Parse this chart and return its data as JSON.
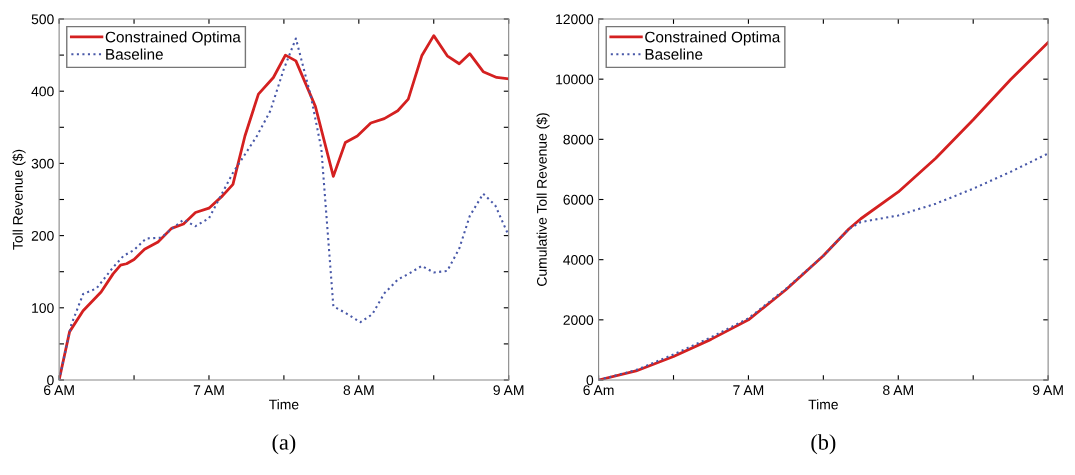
{
  "chart_data": [
    {
      "type": "line",
      "xlabel": "Time",
      "ylabel": "Toll Revenue ($)",
      "annotations": [
        "(a)"
      ],
      "legend": "top left",
      "grid": false,
      "xlim": [
        6,
        9
      ],
      "xticks": [
        {
          "value": 6,
          "label": "6 AM"
        },
        {
          "value": 6.5,
          "label": null
        },
        {
          "value": 7,
          "label": "7 AM"
        },
        {
          "value": 7.5,
          "label": null
        },
        {
          "value": 8,
          "label": "8 AM"
        },
        {
          "value": 8.5,
          "label": null
        },
        {
          "value": 9,
          "label": "9 AM"
        }
      ],
      "ylim": [
        0,
        500
      ],
      "yticks": [
        0,
        {
          "value": 50,
          "label": null
        },
        100,
        {
          "value": 150,
          "label": null
        },
        200,
        {
          "value": 250,
          "label": null
        },
        300,
        {
          "value": 350,
          "label": null
        },
        400,
        {
          "value": 450,
          "label": null
        },
        500
      ],
      "series": [
        {
          "name": "Constrained Optima",
          "color": "#d42020",
          "line_style": "solid",
          "x": [
            6,
            6.07,
            6.16,
            6.28,
            6.36,
            6.41,
            6.45,
            6.5,
            6.57,
            6.66,
            6.75,
            6.83,
            6.91,
            7.0,
            7.09,
            7.16,
            7.24,
            7.33,
            7.43,
            7.51,
            7.58,
            7.71,
            7.83,
            7.91,
            7.99,
            8.08,
            8.17,
            8.26,
            8.33,
            8.42,
            8.5,
            8.59,
            8.67,
            8.74,
            8.83,
            8.92,
            9
          ],
          "values": [
            0,
            67,
            96,
            122,
            147,
            159,
            161,
            167,
            181,
            191,
            210,
            216,
            232,
            238,
            255,
            271,
            338,
            396,
            419,
            450,
            442,
            379,
            282,
            329,
            338,
            356,
            362,
            373,
            389,
            449,
            477,
            449,
            438,
            452,
            427,
            419,
            417
          ]
        },
        {
          "name": "Baseline",
          "color": "#4858a8",
          "line_style": "dotted",
          "x": [
            6,
            6.08,
            6.16,
            6.25,
            6.36,
            6.43,
            6.5,
            6.58,
            6.68,
            6.75,
            6.83,
            6.91,
            7.0,
            7.16,
            7.32,
            7.41,
            7.5,
            7.58,
            7.68,
            7.75,
            7.83,
            7.91,
            8.01,
            8.09,
            8.17,
            8.26,
            8.34,
            8.42,
            8.5,
            8.59,
            8.67,
            8.74,
            8.83,
            8.91,
            9
          ],
          "values": [
            0,
            76,
            119,
            127,
            156,
            172,
            180,
            196,
            197,
            209,
            222,
            213,
            224,
            287,
            338,
            373,
            431,
            473,
            393,
            320,
            102,
            93,
            80,
            91,
            120,
            139,
            148,
            158,
            149,
            151,
            182,
            227,
            258,
            242,
            200
          ]
        }
      ]
    },
    {
      "type": "line",
      "xlabel": "Time",
      "ylabel": "Cumulative Toll Revenue ($)",
      "annotations": [
        "(b)"
      ],
      "legend": "top left",
      "grid": false,
      "xlim": [
        6,
        9
      ],
      "xticks": [
        {
          "value": 6,
          "label": "6 Am"
        },
        {
          "value": 6.5,
          "label": null
        },
        {
          "value": 7,
          "label": "7 AM"
        },
        {
          "value": 7.5,
          "label": null
        },
        {
          "value": 8,
          "label": "8 AM"
        },
        {
          "value": 8.5,
          "label": null
        },
        {
          "value": 9,
          "label": "9 AM"
        }
      ],
      "ylim": [
        0,
        12000
      ],
      "yticks": [
        0,
        2000,
        4000,
        6000,
        8000,
        10000,
        12000
      ],
      "series": [
        {
          "name": "Constrained Optima",
          "color": "#d42020",
          "line_style": "solid",
          "x": [
            6,
            6.25,
            6.5,
            6.75,
            7,
            7.25,
            7.5,
            7.67,
            7.75,
            8,
            8.25,
            8.5,
            8.75,
            9
          ],
          "values": [
            0,
            300,
            780,
            1350,
            2000,
            3000,
            4130,
            5020,
            5360,
            6250,
            7370,
            8650,
            9990,
            11220
          ]
        },
        {
          "name": "Baseline",
          "color": "#4858a8",
          "line_style": "dotted",
          "x": [
            6,
            6.25,
            6.5,
            6.75,
            7,
            7.25,
            7.5,
            7.67,
            7.75,
            8,
            8.25,
            8.5,
            8.75,
            9
          ],
          "values": [
            0,
            330,
            850,
            1420,
            2050,
            3030,
            4130,
            5020,
            5250,
            5470,
            5860,
            6360,
            6920,
            7530
          ]
        }
      ]
    }
  ]
}
